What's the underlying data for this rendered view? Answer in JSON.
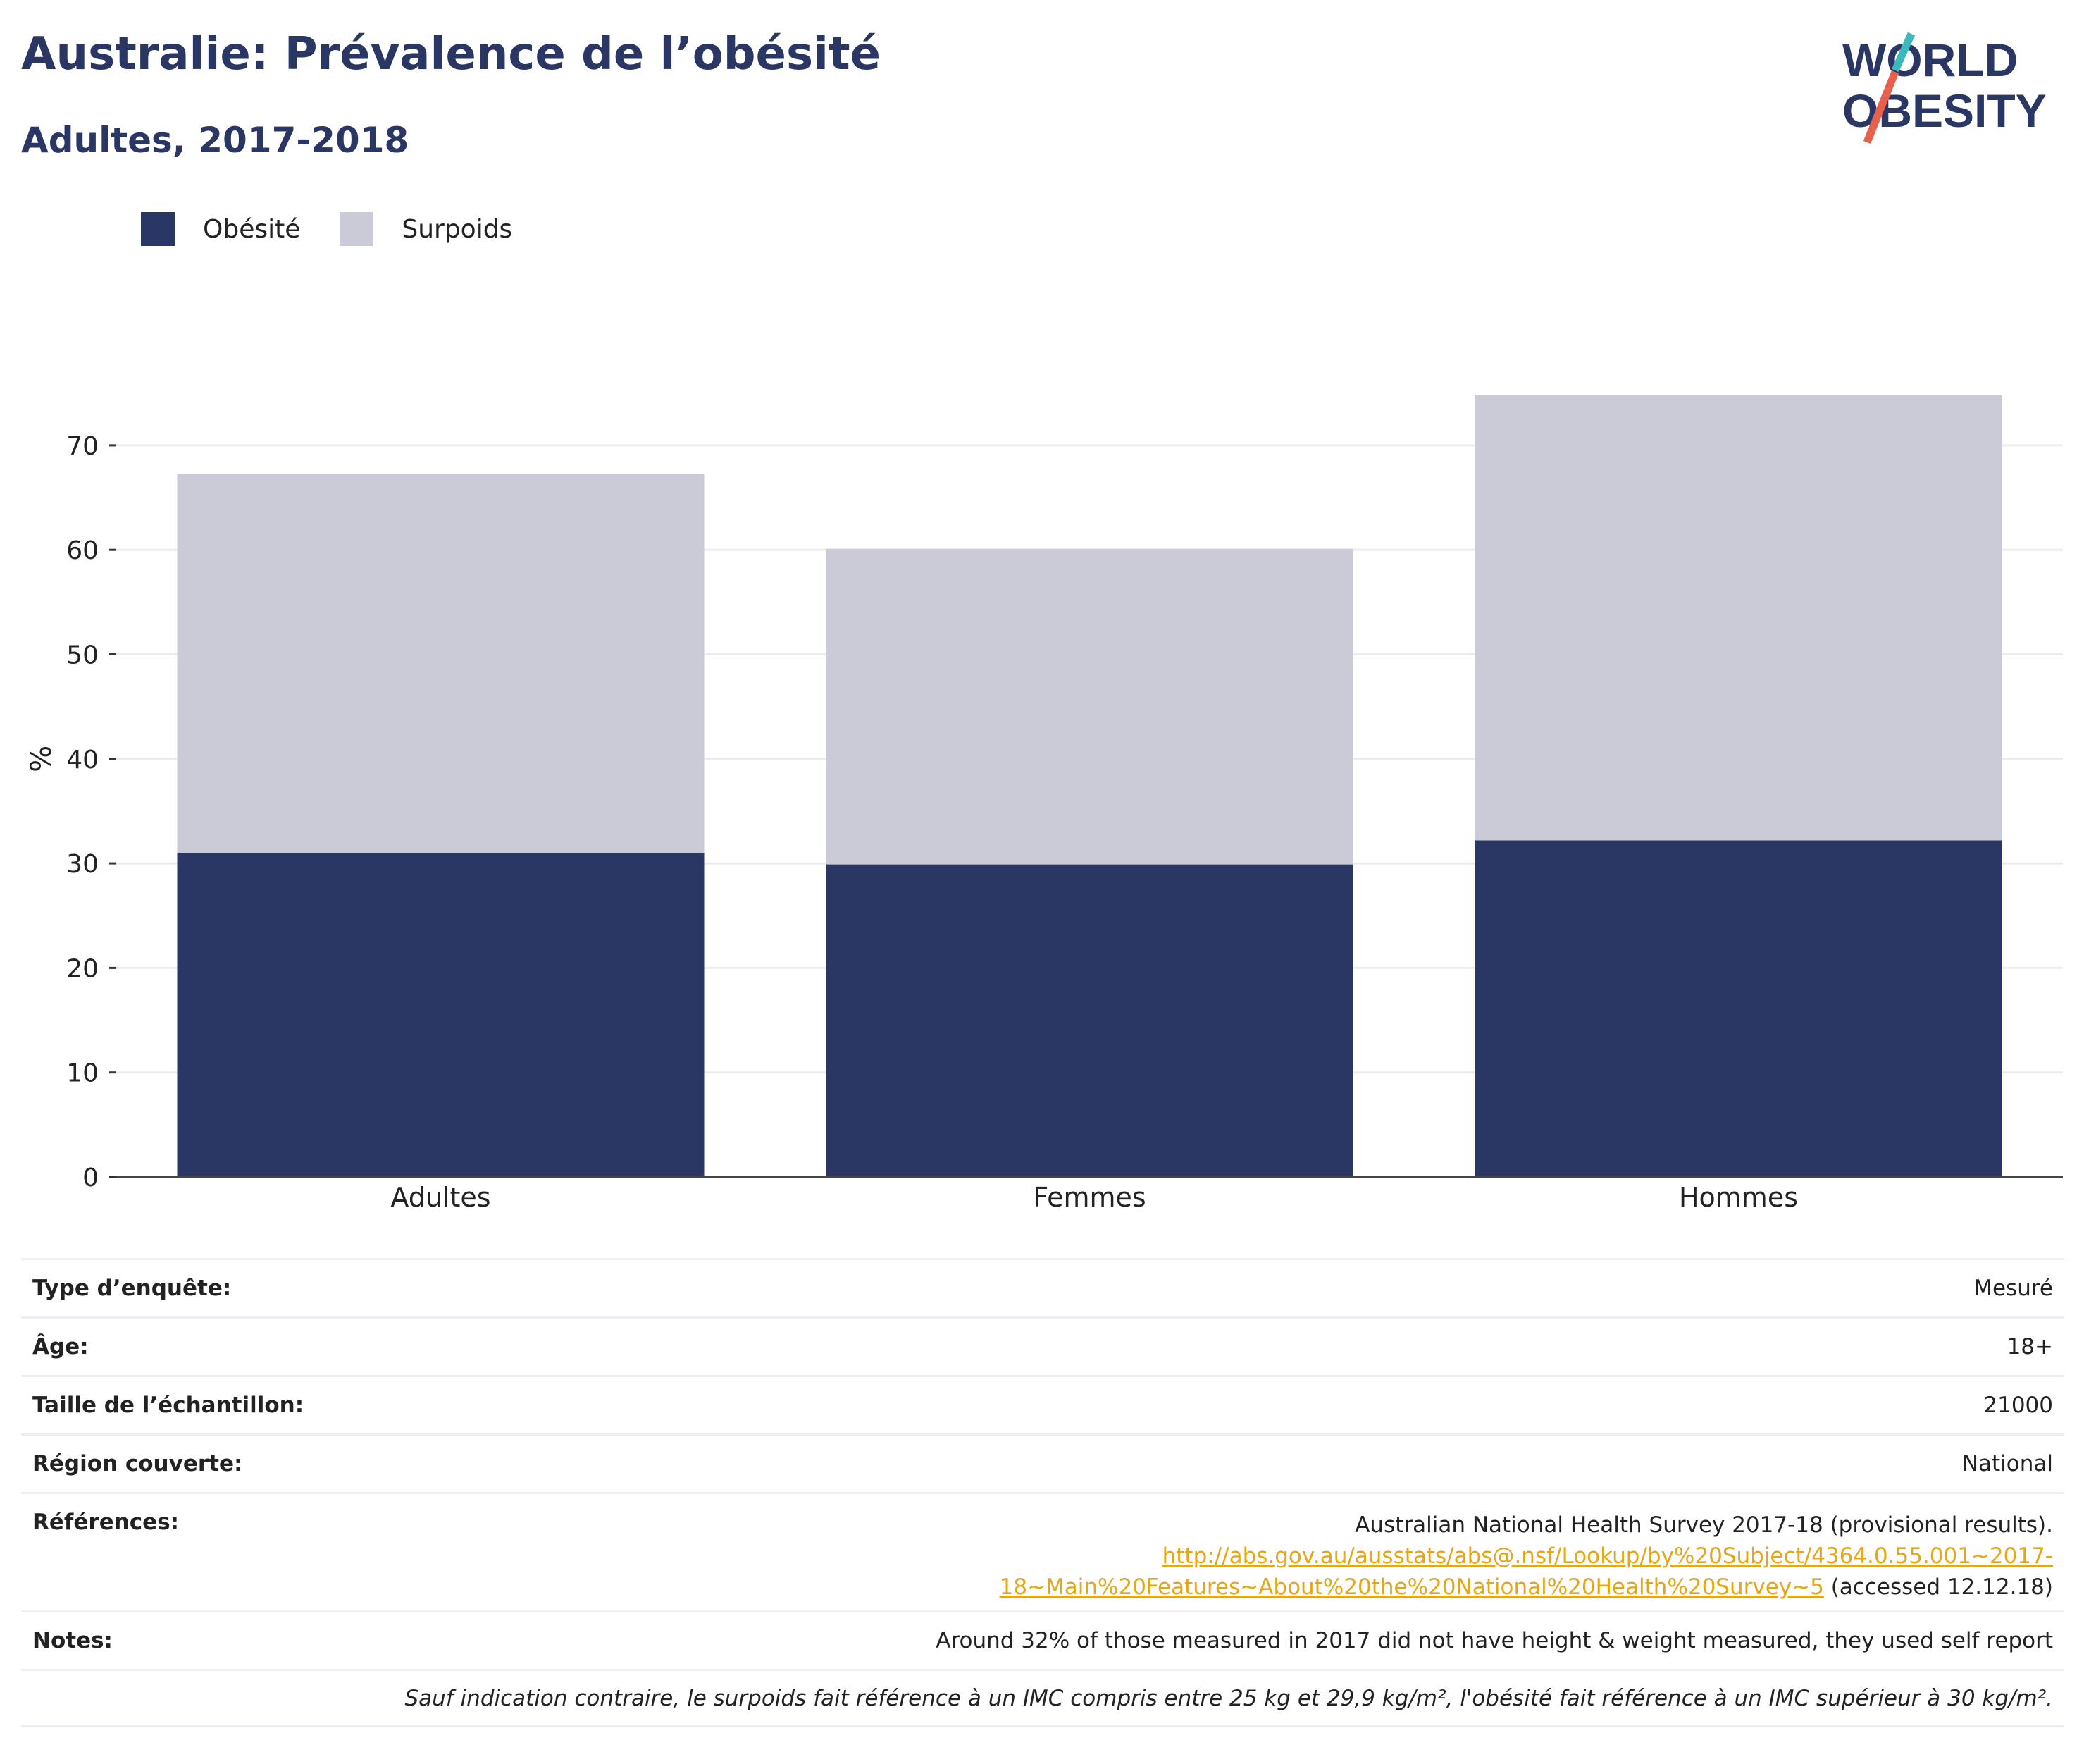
{
  "header": {
    "title": "Australie: Prévalence de l’obésité",
    "subtitle": "Adultes, 2017-2018"
  },
  "logo": {
    "line1": "WORLD",
    "line2": "OBESITY"
  },
  "colors": {
    "obesity": "#2a3764",
    "overweight": "#cacbd6",
    "accent": "#e8a612",
    "logo_teal": "#3bb9bc",
    "logo_red": "#e8604c"
  },
  "legend": [
    {
      "label": "Obésité",
      "color": "#2a3764"
    },
    {
      "label": "Surpoids",
      "color": "#cacbd6"
    }
  ],
  "chart_data": {
    "type": "bar",
    "stacked": true,
    "categories": [
      "Adultes",
      "Femmes",
      "Hommes"
    ],
    "series": [
      {
        "name": "Obésité",
        "values": [
          31.0,
          29.9,
          32.2
        ]
      },
      {
        "name": "Surpoids",
        "values": [
          36.3,
          30.2,
          42.6
        ]
      }
    ],
    "ylabel": "%",
    "yticks": [
      0,
      10,
      20,
      30,
      40,
      50,
      60,
      70
    ],
    "ylim": [
      0,
      75
    ],
    "grid": true,
    "legend_position": "top-left"
  },
  "info": {
    "survey_type": {
      "label": "Type d’enquête:",
      "value": "Mesuré"
    },
    "age": {
      "label": "Âge:",
      "value": "18+"
    },
    "sample": {
      "label": "Taille de l’échantillon:",
      "value": "21000"
    },
    "region": {
      "label": "Région couverte:",
      "value": "National"
    },
    "references": {
      "label": "Références:",
      "line1": "Australian National Health Survey 2017-18 (provisional results).",
      "link_part1": "http://abs.gov.au/ausstats/abs@.nsf/Lookup/by%20Subject/4364.0.55.001~2017-",
      "link_part2": "18~Main%20Features~About%20the%20National%20Health%20Survey~5",
      "accessed": " (accessed 12.12.18)"
    },
    "notes": {
      "label": "Notes:",
      "value": "Around 32% of those measured in 2017 did not have height & weight measured, they used self report"
    },
    "footnote": "Sauf indication contraire, le surpoids fait référence à un IMC compris entre 25 kg et 29,9 kg/m², l'obésité fait référence à un IMC supérieur à 30 kg/m²."
  }
}
